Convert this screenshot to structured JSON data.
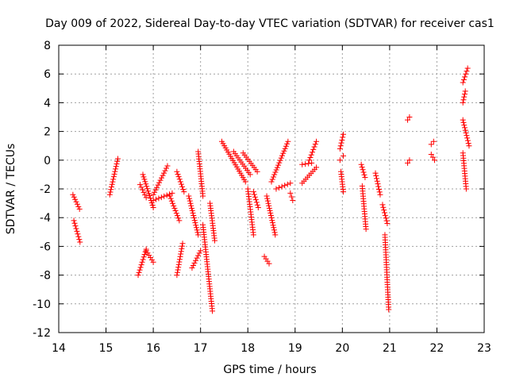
{
  "chart_data": {
    "type": "scatter",
    "title": "Day 009 of 2022, Sidereal Day-to-day VTEC variation (SDTVAR) for receiver cas1",
    "xlabel": "GPS time / hours",
    "ylabel": "SDTVAR / TECUs",
    "xlim": [
      14,
      23
    ],
    "ylim": [
      -12,
      8
    ],
    "xticks": [
      "14",
      "15",
      "16",
      "17",
      "18",
      "19",
      "20",
      "21",
      "22",
      "23"
    ],
    "yticks": [
      "8",
      "6",
      "4",
      "2",
      "0",
      "-2",
      "-4",
      "-6",
      "-8",
      "-10",
      "-12"
    ],
    "grid": true,
    "marker": "+",
    "series": [
      {
        "name": "SDTVAR",
        "color": "#ff0000",
        "segments": [
          {
            "x": [
              14.3,
              14.44
            ],
            "y": [
              -2.4,
              -3.4
            ]
          },
          {
            "x": [
              14.32,
              14.45
            ],
            "y": [
              -4.2,
              -5.7
            ]
          },
          {
            "x": [
              15.08,
              15.25
            ],
            "y": [
              -2.4,
              0.1
            ]
          },
          {
            "x": [
              15.68,
              15.85
            ],
            "y": [
              -8.0,
              -6.2
            ]
          },
          {
            "x": [
              15.72,
              15.85
            ],
            "y": [
              -1.7,
              -2.6
            ]
          },
          {
            "x": [
              15.78,
              16.0
            ],
            "y": [
              -1.0,
              -3.3
            ]
          },
          {
            "x": [
              15.85,
              16.0
            ],
            "y": [
              -6.3,
              -7.1
            ]
          },
          {
            "x": [
              16.0,
              16.3
            ],
            "y": [
              -2.4,
              -0.4
            ]
          },
          {
            "x": [
              16.0,
              16.4
            ],
            "y": [
              -2.8,
              -2.3
            ]
          },
          {
            "x": [
              16.35,
              16.55
            ],
            "y": [
              -2.5,
              -4.2
            ]
          },
          {
            "x": [
              16.5,
              16.62
            ],
            "y": [
              -8.0,
              -5.8
            ]
          },
          {
            "x": [
              16.5,
              16.65
            ],
            "y": [
              -0.8,
              -2.2
            ]
          },
          {
            "x": [
              16.75,
              16.95
            ],
            "y": [
              -2.5,
              -5.2
            ]
          },
          {
            "x": [
              16.82,
              17.0
            ],
            "y": [
              -7.5,
              -6.3
            ]
          },
          {
            "x": [
              16.95,
              17.05
            ],
            "y": [
              0.6,
              -2.5
            ]
          },
          {
            "x": [
              17.05,
              17.25
            ],
            "y": [
              -4.5,
              -10.5
            ]
          },
          {
            "x": [
              17.2,
              17.3
            ],
            "y": [
              -3.0,
              -5.6
            ]
          },
          {
            "x": [
              17.45,
              17.95
            ],
            "y": [
              1.3,
              -1.5
            ]
          },
          {
            "x": [
              17.7,
              18.05
            ],
            "y": [
              0.6,
              -1.0
            ]
          },
          {
            "x": [
              17.9,
              18.2
            ],
            "y": [
              0.5,
              -0.8
            ]
          },
          {
            "x": [
              18.0,
              18.12
            ],
            "y": [
              -2.0,
              -5.2
            ]
          },
          {
            "x": [
              18.12,
              18.22
            ],
            "y": [
              -2.2,
              -3.3
            ]
          },
          {
            "x": [
              18.35,
              18.45
            ],
            "y": [
              -6.7,
              -7.2
            ]
          },
          {
            "x": [
              18.4,
              18.58
            ],
            "y": [
              -2.5,
              -5.2
            ]
          },
          {
            "x": [
              18.5,
              18.85
            ],
            "y": [
              -1.5,
              1.3
            ]
          },
          {
            "x": [
              18.6,
              18.9
            ],
            "y": [
              -2.0,
              -1.6
            ]
          },
          {
            "x": [
              18.9,
              18.95
            ],
            "y": [
              -2.3,
              -2.8
            ]
          },
          {
            "x": [
              19.15,
              19.35
            ],
            "y": [
              -0.3,
              -0.2
            ]
          },
          {
            "x": [
              19.3,
              19.45
            ],
            "y": [
              0.0,
              1.3
            ]
          },
          {
            "x": [
              19.15,
              19.45
            ],
            "y": [
              -1.6,
              -0.5
            ]
          },
          {
            "x": [
              19.95,
              20.02
            ],
            "y": [
              0.8,
              1.8
            ]
          },
          {
            "x": [
              19.95,
              20.02
            ],
            "y": [
              0.0,
              0.3
            ]
          },
          {
            "x": [
              19.97,
              20.02
            ],
            "y": [
              -0.8,
              -2.2
            ]
          },
          {
            "x": [
              20.4,
              20.48
            ],
            "y": [
              -0.3,
              -1.2
            ]
          },
          {
            "x": [
              20.42,
              20.5
            ],
            "y": [
              -1.8,
              -4.8
            ]
          },
          {
            "x": [
              20.7,
              20.8
            ],
            "y": [
              -0.9,
              -2.4
            ]
          },
          {
            "x": [
              20.85,
              20.95
            ],
            "y": [
              -3.1,
              -4.4
            ]
          },
          {
            "x": [
              20.9,
              20.98
            ],
            "y": [
              -5.2,
              -10.4
            ]
          },
          {
            "x": [
              21.38,
              21.42
            ],
            "y": [
              2.8,
              3.0
            ]
          },
          {
            "x": [
              21.38,
              21.42
            ],
            "y": [
              -0.2,
              0.0
            ]
          },
          {
            "x": [
              21.88,
              21.93
            ],
            "y": [
              1.1,
              1.3
            ]
          },
          {
            "x": [
              21.88,
              21.95
            ],
            "y": [
              0.4,
              0.0
            ]
          },
          {
            "x": [
              22.55,
              22.65
            ],
            "y": [
              5.4,
              6.4
            ]
          },
          {
            "x": [
              22.55,
              22.6
            ],
            "y": [
              4.0,
              4.8
            ]
          },
          {
            "x": [
              22.55,
              22.68
            ],
            "y": [
              2.8,
              1.0
            ]
          },
          {
            "x": [
              22.55,
              22.62
            ],
            "y": [
              0.5,
              -2.0
            ]
          }
        ]
      }
    ]
  }
}
